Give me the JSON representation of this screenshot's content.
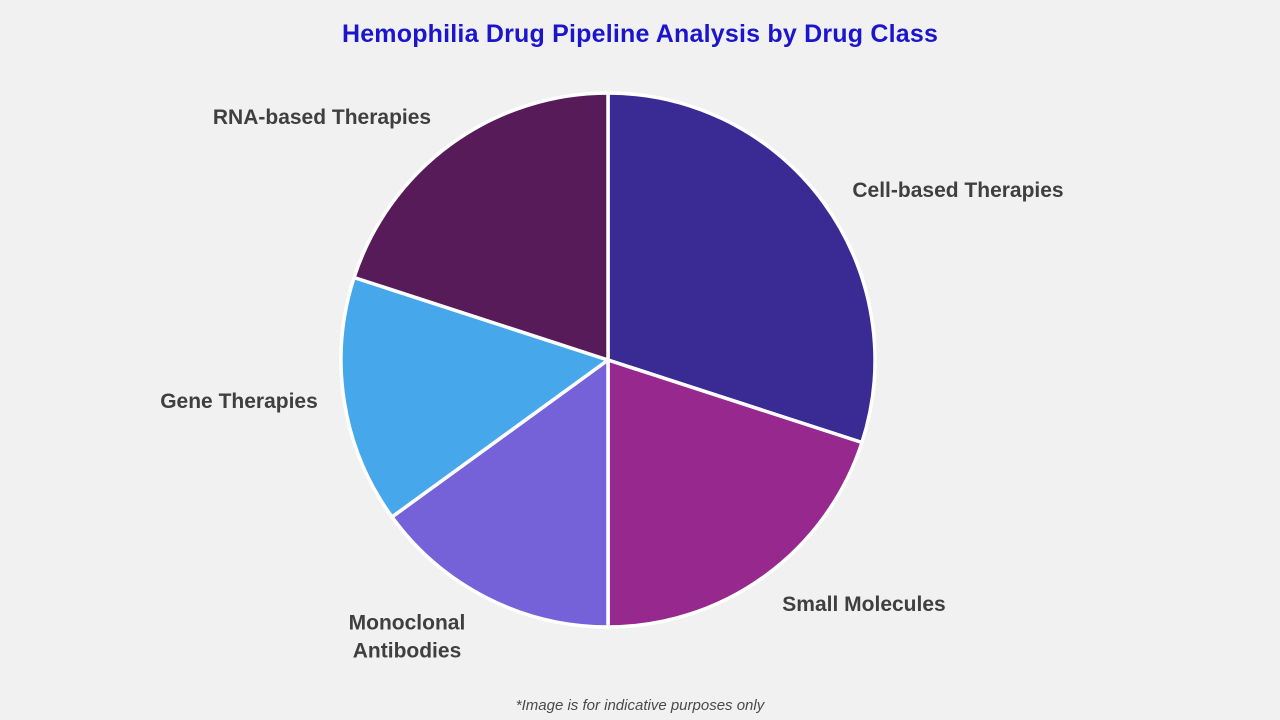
{
  "chart_data": {
    "type": "pie",
    "title": "Hemophilia Drug Pipeline Analysis by Drug Class",
    "start_angle_deg": 90,
    "direction": "clockwise",
    "legend": "none (direct outside labels)",
    "value_note": "percent shares estimated from slice arc angles; no numeric labels shown in image",
    "slices": [
      {
        "label": "Cell-based Therapies",
        "value": 30,
        "color": "#3a2a94"
      },
      {
        "label": "Small Molecules",
        "value": 20,
        "color": "#97288e"
      },
      {
        "label": "Monoclonal Antibodies",
        "value": 15,
        "color": "#7562d8"
      },
      {
        "label": "Gene Therapies",
        "value": 15,
        "color": "#46a7ea"
      },
      {
        "label": "RNA-based Therapies",
        "value": 20,
        "color": "#571b59"
      }
    ],
    "separator_color": "#ffffff",
    "background_color": "#f1f1f1",
    "title_color": "#1b15ce",
    "label_color": "#3f3f3f"
  },
  "footer": {
    "note": "*Image is for indicative purposes only"
  }
}
